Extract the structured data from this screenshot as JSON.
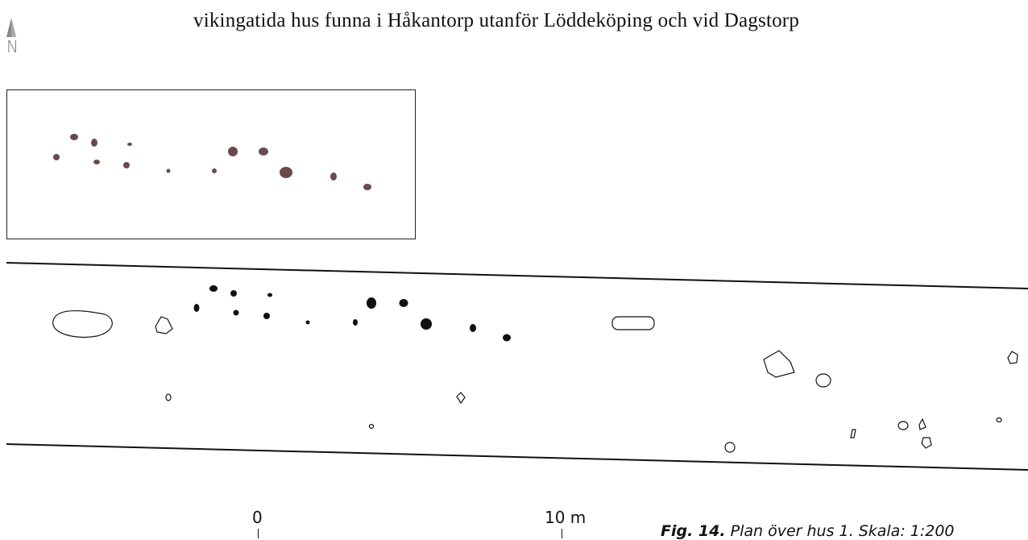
{
  "text": {
    "line": "vikingatida hus funna i Håkantorp utanför Löddeköping och vid Dagstorp"
  },
  "north": "N",
  "scale": {
    "start": "0",
    "end": "10 m"
  },
  "caption": {
    "label": "Fig. 14.",
    "text": "Plan över hus 1. Skala: 1:200"
  }
}
